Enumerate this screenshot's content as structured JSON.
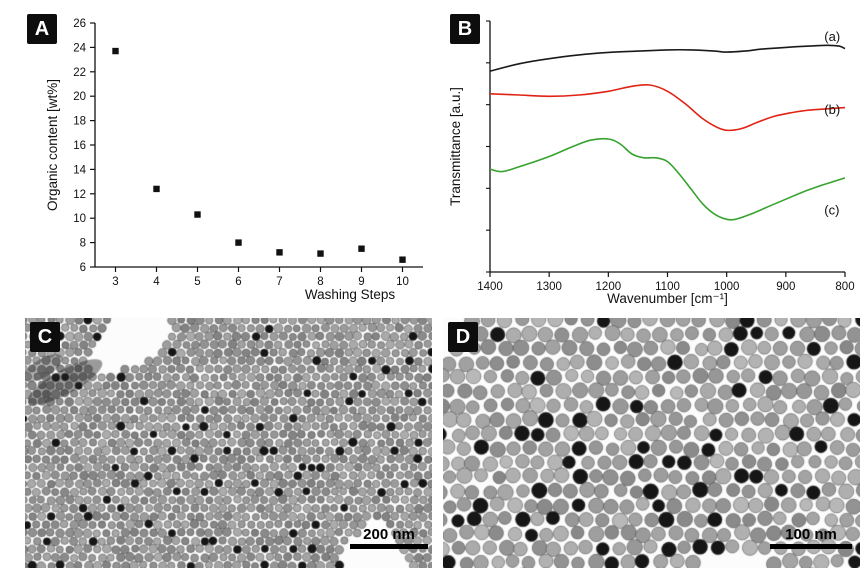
{
  "panels": {
    "a": {
      "label": "A"
    },
    "b": {
      "label": "B"
    },
    "c": {
      "label": "C",
      "scale_bar": "200 nm"
    },
    "d": {
      "label": "D",
      "scale_bar": "100 nm"
    }
  },
  "chart_data": [
    {
      "id": "panel-a",
      "type": "scatter",
      "marker": "square",
      "color": "#111111",
      "xlabel": "Washing Steps",
      "ylabel": "Organic content [wt%]",
      "x": [
        3,
        4,
        5,
        6,
        7,
        8,
        9,
        10
      ],
      "y": [
        23.7,
        12.4,
        10.3,
        8.0,
        7.2,
        7.1,
        7.5,
        6.6
      ],
      "xlim": [
        2.5,
        10.5
      ],
      "ylim": [
        6,
        26
      ],
      "xticks": [
        3,
        4,
        5,
        6,
        7,
        8,
        9,
        10
      ],
      "yticks": [
        6,
        8,
        10,
        12,
        14,
        16,
        18,
        20,
        22,
        24,
        26
      ],
      "grid": false
    },
    {
      "id": "panel-b",
      "type": "line",
      "xlabel": "Wavenumber [cm⁻¹]",
      "ylabel": "Transmittance [a.u.]",
      "xlim": [
        1400,
        800
      ],
      "x_reversed": true,
      "xticks": [
        1400,
        1300,
        1200,
        1100,
        1000,
        900,
        800
      ],
      "ylim": [
        0,
        100
      ],
      "ytick_count": 7,
      "yticks_labeled": false,
      "grid": false,
      "series": [
        {
          "name": "(a)",
          "color": "#1a1a1a",
          "x": [
            1400,
            1350,
            1300,
            1250,
            1200,
            1150,
            1100,
            1060,
            1020,
            1000,
            970,
            940,
            900,
            860,
            830,
            810,
            800
          ],
          "y": [
            80,
            83,
            85,
            86.5,
            87.5,
            88,
            88.5,
            88.5,
            88,
            87.6,
            88,
            88.8,
            89.5,
            90,
            90.3,
            90,
            89
          ]
        },
        {
          "name": "(b)",
          "color": "#e02314",
          "x": [
            1400,
            1350,
            1300,
            1250,
            1200,
            1160,
            1130,
            1100,
            1070,
            1040,
            1010,
            990,
            970,
            950,
            920,
            890,
            860,
            830,
            800
          ],
          "y": [
            71,
            70.5,
            70,
            70.5,
            72,
            74,
            74.5,
            72,
            67,
            61,
            57,
            56.5,
            57.5,
            59.5,
            62,
            63.5,
            64.5,
            65,
            65.5
          ]
        },
        {
          "name": "(c)",
          "color": "#35a32e",
          "x": [
            1400,
            1380,
            1350,
            1300,
            1260,
            1230,
            1200,
            1180,
            1160,
            1140,
            1120,
            1100,
            1080,
            1060,
            1040,
            1020,
            1000,
            985,
            960,
            930,
            900,
            870,
            840,
            820,
            800
          ],
          "y": [
            41,
            40,
            42,
            46,
            50,
            52.5,
            53,
            51,
            47,
            45.5,
            45.5,
            44,
            39,
            33,
            27,
            23,
            21,
            21,
            23,
            26,
            29,
            32,
            34.5,
            36,
            37.5
          ]
        }
      ],
      "labels": [
        {
          "text": "(a)",
          "x": 835,
          "y": 92
        },
        {
          "text": "(b)",
          "x": 835,
          "y": 63
        },
        {
          "text": "(c)",
          "x": 835,
          "y": 23
        }
      ]
    }
  ]
}
